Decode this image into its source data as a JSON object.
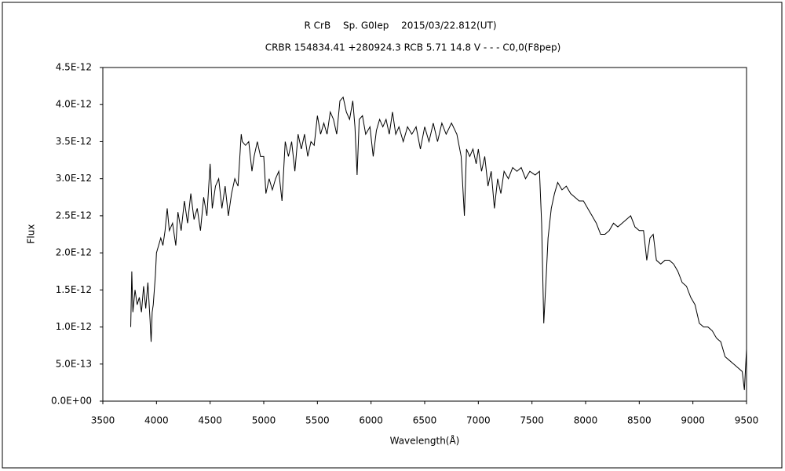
{
  "chart_data": {
    "type": "line",
    "title": "R CrB　 Sp. G0Iep　 2015/03/22.812(UT)",
    "subtitle": "CRBR 154834.41 +280924.3 RCB 5.71 14.8 V - - - C0,0(F8pep)",
    "x_label": "Wavelength(Å)",
    "y_label": "Flux",
    "xlim": [
      3500,
      9500
    ],
    "xticks": [
      3500,
      4000,
      4500,
      5000,
      5500,
      6000,
      6500,
      7000,
      7500,
      8000,
      8500,
      9000,
      9500
    ],
    "ylim": [
      0,
      4.5e-12
    ],
    "yticks": [
      {
        "value": 0,
        "label": "0.0E+00"
      },
      {
        "value": 5e-13,
        "label": "5.0E-13"
      },
      {
        "value": 1e-12,
        "label": "1.0E-12"
      },
      {
        "value": 1.5e-12,
        "label": "1.5E-12"
      },
      {
        "value": 2e-12,
        "label": "2.0E-12"
      },
      {
        "value": 2.5e-12,
        "label": "2.5E-12"
      },
      {
        "value": 3e-12,
        "label": "3.0E-12"
      },
      {
        "value": 3.5e-12,
        "label": "3.5E-12"
      },
      {
        "value": 4e-12,
        "label": "4.0E-12"
      },
      {
        "value": 4.5e-12,
        "label": "4.5E-12"
      }
    ],
    "color": "#000000",
    "x": [
      3760,
      3770,
      3780,
      3800,
      3820,
      3840,
      3860,
      3880,
      3900,
      3920,
      3940,
      3950,
      3960,
      3970,
      3990,
      4000,
      4020,
      4040,
      4060,
      4080,
      4100,
      4120,
      4150,
      4180,
      4200,
      4230,
      4260,
      4290,
      4320,
      4350,
      4380,
      4410,
      4440,
      4470,
      4500,
      4520,
      4550,
      4580,
      4610,
      4640,
      4670,
      4700,
      4730,
      4760,
      4790,
      4800,
      4830,
      4860,
      4890,
      4910,
      4940,
      4970,
      5000,
      5020,
      5050,
      5080,
      5110,
      5140,
      5170,
      5200,
      5230,
      5260,
      5290,
      5320,
      5350,
      5380,
      5410,
      5440,
      5470,
      5500,
      5530,
      5560,
      5590,
      5620,
      5650,
      5680,
      5710,
      5740,
      5770,
      5800,
      5830,
      5850,
      5870,
      5890,
      5920,
      5950,
      5990,
      6020,
      6050,
      6080,
      6110,
      6140,
      6170,
      6200,
      6230,
      6260,
      6300,
      6340,
      6380,
      6420,
      6460,
      6500,
      6540,
      6580,
      6620,
      6660,
      6700,
      6750,
      6800,
      6840,
      6870,
      6890,
      6920,
      6950,
      6980,
      7000,
      7030,
      7060,
      7090,
      7120,
      7150,
      7180,
      7210,
      7240,
      7280,
      7320,
      7360,
      7400,
      7440,
      7480,
      7530,
      7570,
      7590,
      7610,
      7630,
      7650,
      7680,
      7710,
      7740,
      7780,
      7820,
      7860,
      7900,
      7940,
      7980,
      8020,
      8060,
      8100,
      8140,
      8180,
      8220,
      8260,
      8300,
      8340,
      8380,
      8420,
      8460,
      8500,
      8540,
      8570,
      8600,
      8630,
      8660,
      8700,
      8740,
      8780,
      8820,
      8860,
      8900,
      8940,
      8980,
      9020,
      9060,
      9100,
      9140,
      9180,
      9220,
      9260,
      9300,
      9340,
      9380,
      9420,
      9460,
      9480,
      9500
    ],
    "values": [
      1e-12,
      1.75e-12,
      1.2e-12,
      1.5e-12,
      1.3e-12,
      1.4e-12,
      1.2e-12,
      1.55e-12,
      1.25e-12,
      1.6e-12,
      1.1e-12,
      8e-13,
      1.2e-12,
      1.3e-12,
      1.7e-12,
      2e-12,
      2.1e-12,
      2.2e-12,
      2.1e-12,
      2.3e-12,
      2.6e-12,
      2.3e-12,
      2.4e-12,
      2.1e-12,
      2.55e-12,
      2.3e-12,
      2.7e-12,
      2.4e-12,
      2.8e-12,
      2.45e-12,
      2.6e-12,
      2.3e-12,
      2.75e-12,
      2.5e-12,
      3.2e-12,
      2.6e-12,
      2.9e-12,
      3e-12,
      2.6e-12,
      2.9e-12,
      2.5e-12,
      2.8e-12,
      3e-12,
      2.9e-12,
      3.6e-12,
      3.5e-12,
      3.45e-12,
      3.5e-12,
      3.1e-12,
      3.3e-12,
      3.5e-12,
      3.3e-12,
      3.3e-12,
      2.8e-12,
      3e-12,
      2.85e-12,
      3e-12,
      3.1e-12,
      2.7e-12,
      3.5e-12,
      3.3e-12,
      3.5e-12,
      3.1e-12,
      3.6e-12,
      3.4e-12,
      3.6e-12,
      3.3e-12,
      3.5e-12,
      3.45e-12,
      3.85e-12,
      3.6e-12,
      3.75e-12,
      3.6e-12,
      3.9e-12,
      3.8e-12,
      3.6e-12,
      4.05e-12,
      4.1e-12,
      3.9e-12,
      3.8e-12,
      4.05e-12,
      3.7e-12,
      3.05e-12,
      3.8e-12,
      3.85e-12,
      3.6e-12,
      3.7e-12,
      3.3e-12,
      3.65e-12,
      3.8e-12,
      3.7e-12,
      3.8e-12,
      3.6e-12,
      3.9e-12,
      3.6e-12,
      3.7e-12,
      3.5e-12,
      3.7e-12,
      3.6e-12,
      3.7e-12,
      3.4e-12,
      3.7e-12,
      3.5e-12,
      3.75e-12,
      3.5e-12,
      3.75e-12,
      3.6e-12,
      3.75e-12,
      3.6e-12,
      3.3e-12,
      2.5e-12,
      3.4e-12,
      3.3e-12,
      3.4e-12,
      3.2e-12,
      3.4e-12,
      3.1e-12,
      3.3e-12,
      2.9e-12,
      3.1e-12,
      2.6e-12,
      3e-12,
      2.8e-12,
      3.1e-12,
      3e-12,
      3.15e-12,
      3.1e-12,
      3.15e-12,
      3e-12,
      3.1e-12,
      3.05e-12,
      3.1e-12,
      2.4e-12,
      1.05e-12,
      1.6e-12,
      2.2e-12,
      2.6e-12,
      2.8e-12,
      2.95e-12,
      2.85e-12,
      2.9e-12,
      2.8e-12,
      2.75e-12,
      2.7e-12,
      2.7e-12,
      2.6e-12,
      2.5e-12,
      2.4e-12,
      2.25e-12,
      2.25e-12,
      2.3e-12,
      2.4e-12,
      2.35e-12,
      2.4e-12,
      2.45e-12,
      2.5e-12,
      2.35e-12,
      2.3e-12,
      2.3e-12,
      1.9e-12,
      2.2e-12,
      2.25e-12,
      1.9e-12,
      1.85e-12,
      1.9e-12,
      1.9e-12,
      1.85e-12,
      1.75e-12,
      1.6e-12,
      1.55e-12,
      1.4e-12,
      1.3e-12,
      1.05e-12,
      1e-12,
      1e-12,
      9.5e-13,
      8.5e-13,
      8e-13,
      6e-13,
      5.5e-13,
      5e-13,
      4.5e-13,
      4e-13,
      1.5e-13,
      7e-13
    ]
  }
}
